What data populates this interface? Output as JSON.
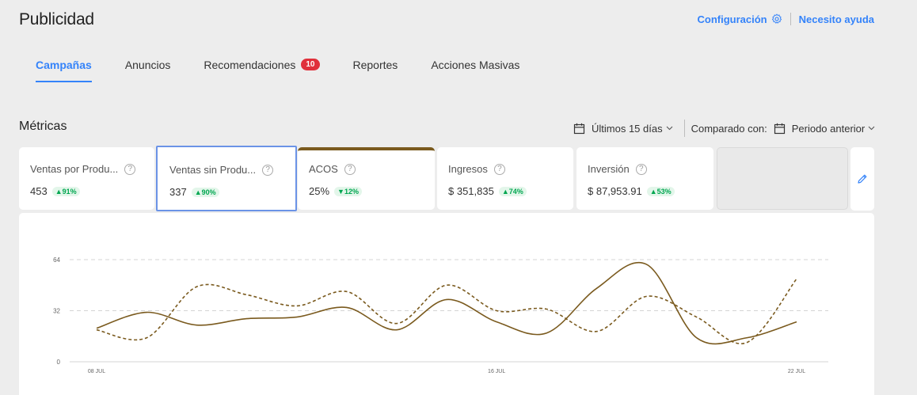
{
  "header": {
    "title": "Publicidad",
    "config_label": "Configuración",
    "help_label": "Necesito ayuda"
  },
  "tabs": [
    {
      "label": "Campañas",
      "active": true
    },
    {
      "label": "Anuncios"
    },
    {
      "label": "Recomendaciones",
      "badge": "10"
    },
    {
      "label": "Reportes"
    },
    {
      "label": "Acciones Masivas"
    }
  ],
  "metrics": {
    "title": "Métricas",
    "period_label": "Últimos 15 días",
    "compare_label": "Comparado con:",
    "compare_value": "Periodo anterior",
    "cards": [
      {
        "name": "Ventas por Produ...",
        "value": "453",
        "delta": "▲91%"
      },
      {
        "name": "Ventas sin Produ...",
        "value": "337",
        "delta": "▲90%"
      },
      {
        "name": "ACOS",
        "value": "25%",
        "delta": "▼12%"
      },
      {
        "name": "Ingresos",
        "value": "$ 351,835",
        "delta": "▲74%"
      },
      {
        "name": "Inversión",
        "value": "$ 87,953.91",
        "delta": "▲53%"
      }
    ]
  },
  "chart_data": {
    "type": "line",
    "ylim": [
      0,
      64
    ],
    "y_ticks": [
      "0",
      "32",
      "64"
    ],
    "x_ticks": [
      {
        "label": "08 JUL",
        "x": 0
      },
      {
        "label": "16 JUL",
        "x": 8
      },
      {
        "label": "22 JUL",
        "x": 14
      }
    ],
    "series": [
      {
        "style": "solid",
        "color": "#7a5a1e",
        "x": [
          0,
          1,
          2,
          3,
          4,
          5,
          6,
          7,
          8,
          9,
          10,
          11,
          12,
          13,
          14
        ],
        "values": [
          21,
          31,
          23,
          27,
          28,
          34,
          20,
          39,
          25,
          18,
          46,
          61,
          15,
          15,
          25
        ]
      },
      {
        "style": "dashed",
        "color": "#7a5a1e",
        "x": [
          0,
          1,
          2,
          3,
          4,
          5,
          6,
          7,
          8,
          9,
          10,
          11,
          12,
          13,
          14
        ],
        "values": [
          20,
          15,
          47,
          42,
          35,
          44,
          24,
          48,
          32,
          33,
          19,
          41,
          28,
          12,
          52
        ]
      }
    ]
  }
}
